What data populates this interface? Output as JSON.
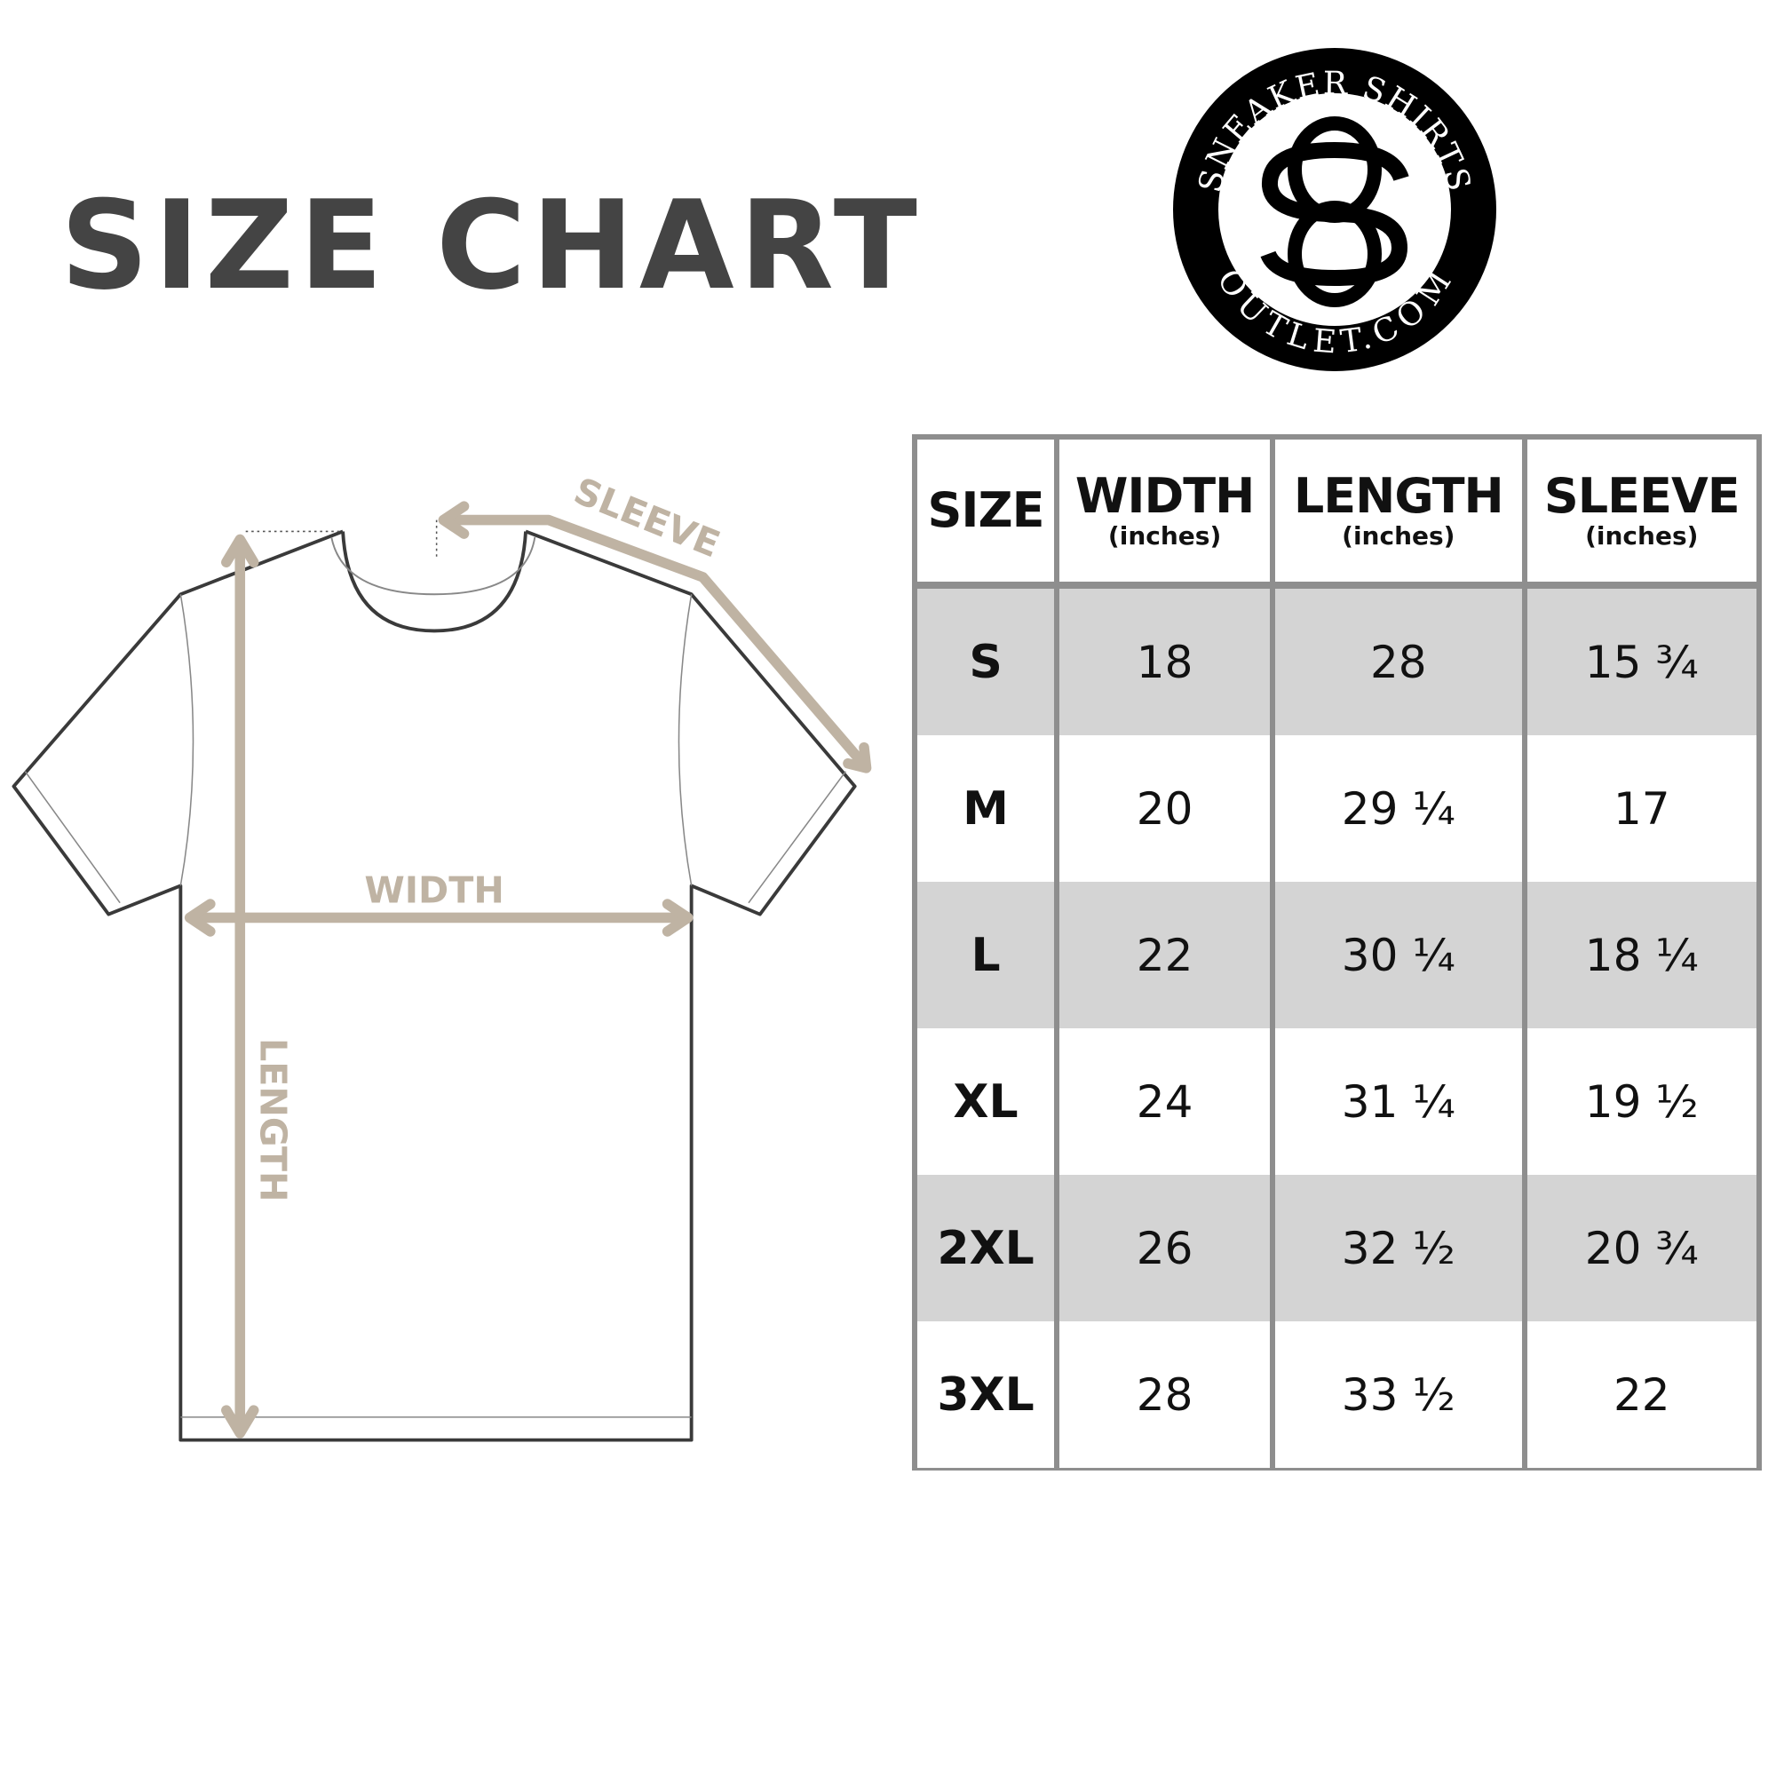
{
  "title": "SIZE CHART",
  "logo": {
    "top_text": "SNEAKER SHIRTS",
    "bottom_text": "OUTLET.COM",
    "monogram": "SO"
  },
  "diagram": {
    "sleeve_label": "SLEEVE",
    "width_label": "WIDTH",
    "length_label": "LENGTH",
    "arrow_color": "#bfb3a3"
  },
  "table": {
    "headers": [
      {
        "label": "SIZE",
        "unit": ""
      },
      {
        "label": "WIDTH",
        "unit": "(inches)"
      },
      {
        "label": "LENGTH",
        "unit": "(inches)"
      },
      {
        "label": "SLEEVE",
        "unit": "(inches)"
      }
    ],
    "rows": [
      [
        "S",
        "18",
        "28",
        "15 ¾"
      ],
      [
        "M",
        "20",
        "29 ¼",
        "17"
      ],
      [
        "L",
        "22",
        "30 ¼",
        "18 ¼"
      ],
      [
        "XL",
        "24",
        "31 ¼",
        "19 ½"
      ],
      [
        "2XL",
        "26",
        "32 ½",
        "20 ¾"
      ],
      [
        "3XL",
        "28",
        "33 ½",
        "22"
      ]
    ],
    "stripe_color": "#d4d4d4",
    "border_color": "#8e8e8e"
  }
}
